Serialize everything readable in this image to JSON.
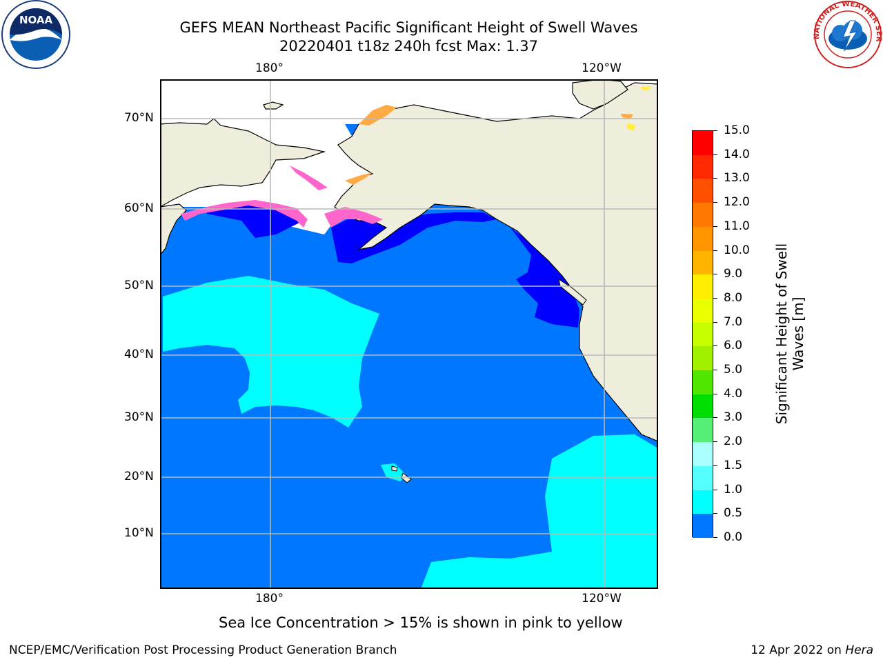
{
  "title": {
    "line1": "GEFS MEAN Northeast Pacific Significant Height of Swell Waves",
    "line2": "20220401 t18z 240h fcst   Max: 1.37"
  },
  "logos": {
    "left": {
      "icon": "noaa-logo",
      "text": "NOAA"
    },
    "right": {
      "icon": "nws-logo",
      "text": "NATIONAL WEATHER SERVICE"
    }
  },
  "map": {
    "lon_labels_top": [
      "180°",
      "120°W"
    ],
    "lon_labels_bottom": [
      "180°",
      "120°W"
    ],
    "lat_labels": [
      "70°N",
      "60°N",
      "50°N",
      "40°N",
      "30°N",
      "20°N",
      "10°N"
    ],
    "colors": {
      "land": "#efeddc",
      "ocean_0_05": "#0000ff",
      "ocean_05_1": "#0077ff",
      "ocean_1_15": "#00ffff",
      "grid": "#b8b8b8",
      "ice_pink": "#ff66cc",
      "ice_orange": "#ffaa44",
      "ice_yellow": "#ffee44"
    }
  },
  "colorbar": {
    "title": "Significant Height of Swell Waves [m]",
    "ticks": [
      "15.0",
      "14.0",
      "13.0",
      "12.0",
      "11.0",
      "10.0",
      "9.0",
      "8.0",
      "7.0",
      "6.0",
      "5.0",
      "4.0",
      "3.0",
      "2.0",
      "1.5",
      "1.0",
      "0.5",
      "0.0"
    ],
    "colors": [
      "#ff0000",
      "#ff2800",
      "#ff5000",
      "#ff7800",
      "#ff9600",
      "#ffb400",
      "#ffee00",
      "#eaff00",
      "#c8ff00",
      "#a0f000",
      "#50e600",
      "#00dd00",
      "#55ee77",
      "#aaffff",
      "#55ffff",
      "#00ffff",
      "#0077ff",
      "#0000ff"
    ]
  },
  "note": "Sea Ice Concentration > 15% is shown in pink to yellow",
  "footer": {
    "left": "NCEP/EMC/Verification Post Processing Product Generation Branch",
    "right_date": "12 Apr 2022 on ",
    "right_host": "Hera"
  }
}
